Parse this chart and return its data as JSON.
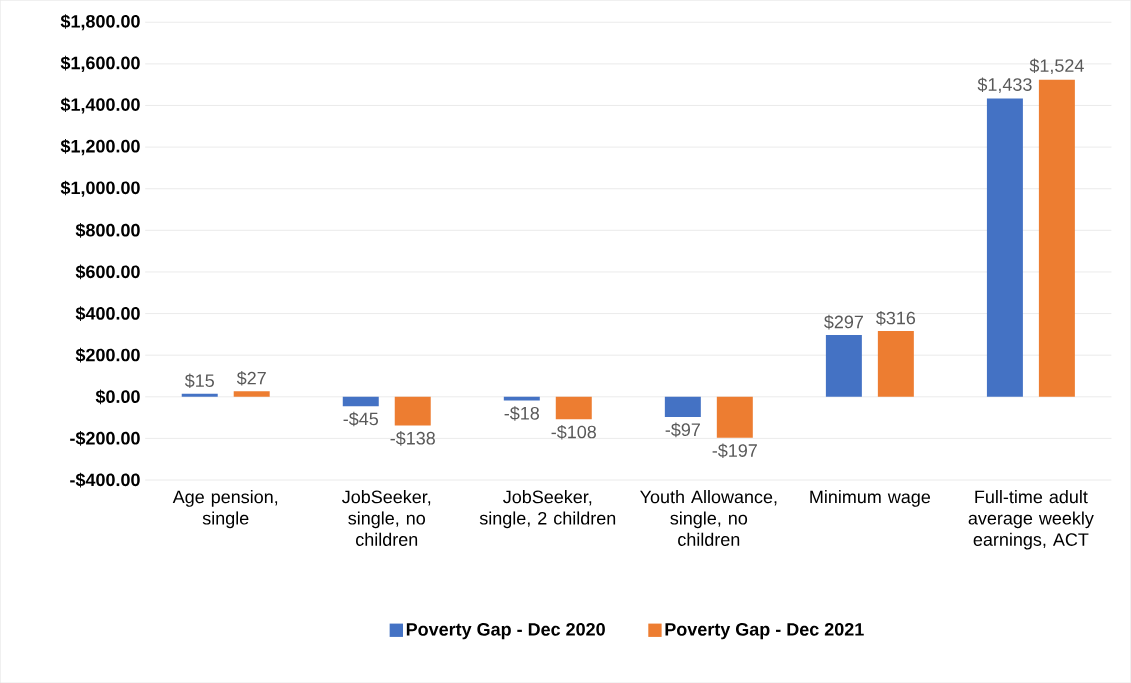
{
  "chart_data": {
    "type": "bar",
    "categories": [
      "Age pension, single",
      "JobSeeker, single, no children",
      "JobSeeker, single, 2 children",
      "Youth Allowance, single, no children",
      "Minimum wage",
      "Full-time adult average weekly earnings, ACT"
    ],
    "series": [
      {
        "name": "Poverty Gap - Dec 2020",
        "color": "#4472c4",
        "values": [
          15,
          -45,
          -18,
          -97,
          297,
          1433
        ],
        "value_labels": [
          "$15",
          "-$45",
          "-$18",
          "-$97",
          "$297",
          "$1,433"
        ]
      },
      {
        "name": "Poverty Gap - Dec 2021",
        "color": "#ed7d31",
        "values": [
          27,
          -138,
          -108,
          -197,
          316,
          1524
        ],
        "value_labels": [
          "$27",
          "-$138",
          "-$108",
          "-$197",
          "$316",
          "$1,524"
        ]
      }
    ],
    "ylim": [
      -400,
      1800
    ],
    "yticks": [
      {
        "value": -400,
        "label": "-$400.00"
      },
      {
        "value": -200,
        "label": "-$200.00"
      },
      {
        "value": 0,
        "label": "$0.00"
      },
      {
        "value": 200,
        "label": "$200.00"
      },
      {
        "value": 400,
        "label": "$400.00"
      },
      {
        "value": 600,
        "label": "$600.00"
      },
      {
        "value": 800,
        "label": "$800.00"
      },
      {
        "value": 1000,
        "label": "$1,000.00"
      },
      {
        "value": 1200,
        "label": "$1,200.00"
      },
      {
        "value": 1400,
        "label": "$1,400.00"
      },
      {
        "value": 1600,
        "label": "$1,600.00"
      },
      {
        "value": 1800,
        "label": "$1,800.00"
      }
    ],
    "grid": "y",
    "legend": "bottom"
  }
}
